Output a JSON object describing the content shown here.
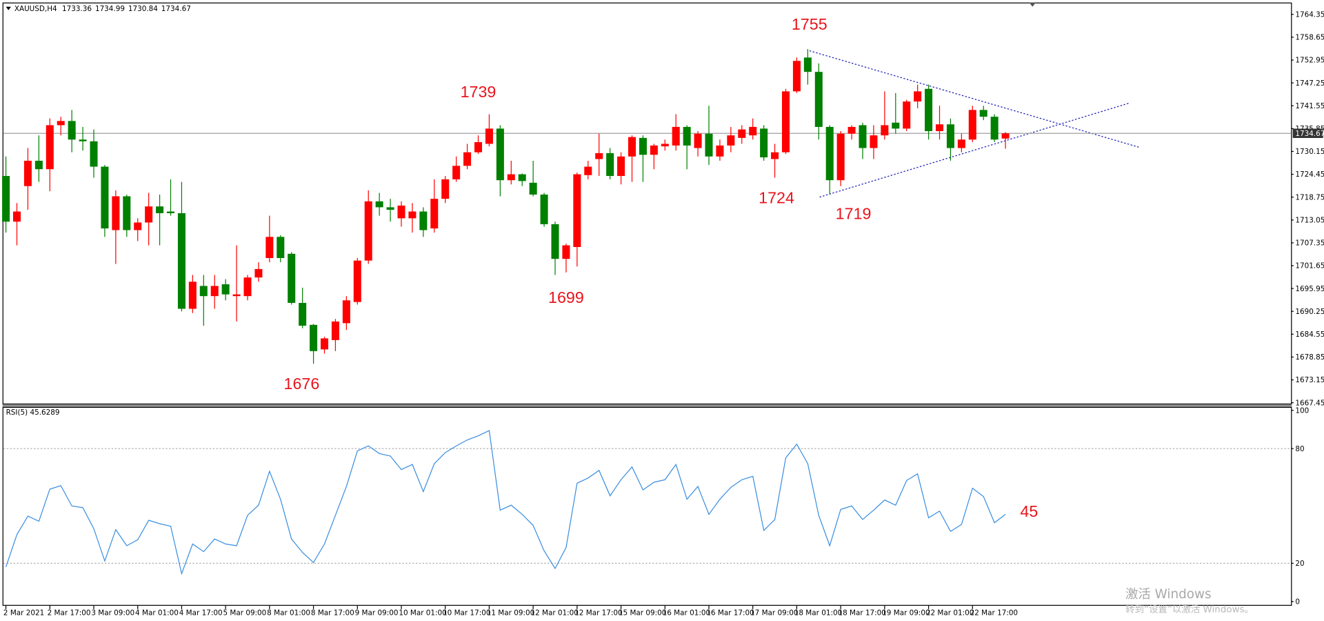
{
  "chart_data": {
    "type": "candlestick",
    "symbol": "XAUUSD,H4",
    "categories": [
      "2 Mar 2021",
      null,
      null,
      null,
      "2 Mar 17:00",
      null,
      null,
      null,
      "3 Mar 09:00",
      null,
      null,
      null,
      "4 Mar 01:00",
      null,
      null,
      null,
      "4 Mar 17:00",
      null,
      null,
      null,
      "5 Mar 09:00",
      null,
      null,
      null,
      "8 Mar 01:00",
      null,
      null,
      null,
      "8 Mar 17:00",
      null,
      null,
      null,
      "9 Mar 09:00",
      null,
      null,
      null,
      "10 Mar 01:00",
      null,
      null,
      null,
      "10 Mar 17:00",
      null,
      null,
      null,
      "11 Mar 09:00",
      null,
      null,
      null,
      "12 Mar 01:00",
      null,
      null,
      null,
      "12 Mar 17:00",
      null,
      null,
      null,
      "15 Mar 09:00",
      null,
      null,
      null,
      "16 Mar 01:00",
      null,
      null,
      null,
      "16 Mar 17:00",
      null,
      null,
      null,
      "17 Mar 09:00",
      null,
      null,
      null,
      "18 Mar 01:00",
      null,
      null,
      null,
      "18 Mar 17:00",
      null,
      null,
      null,
      "19 Mar 09:00",
      null,
      null,
      null,
      "22 Mar 01:00",
      null,
      null,
      null,
      "22 Mar 17:00",
      null,
      null,
      null
    ],
    "open": [
      1724.03,
      1712.63,
      1721.5,
      1727.83,
      1725.72,
      1736.7,
      1737.75,
      1733.11,
      1732.68,
      1726.35,
      1710.52,
      1718.96,
      1710.52,
      1712.42,
      1716.43,
      1715.16,
      1714.74,
      1690.89,
      1696.59,
      1694.05,
      1697.01,
      1694.05,
      1694.05,
      1698.7,
      1703.55,
      1708.83,
      1704.61,
      1692.36,
      1686.88,
      1680.75,
      1683.08,
      1687.3,
      1692.58,
      1702.92,
      1717.7,
      1716.22,
      1713.47,
      1713.47,
      1715.16,
      1710.94,
      1718.33,
      1723.19,
      1726.56,
      1729.94,
      1732.05,
      1735.85,
      1722.97,
      1724.45,
      1722.34,
      1719.39,
      1712.0,
      1703.34,
      1706.3,
      1724.24,
      1728.25,
      1729.73,
      1724.03,
      1728.89,
      1733.53,
      1729.31,
      1731.42,
      1731.63,
      1736.27,
      1731.0,
      1734.58,
      1728.89,
      1731.63,
      1733.53,
      1734.16,
      1735.85,
      1728.25,
      1729.94,
      1745.14,
      1753.58,
      1750.0,
      1736.27,
      1722.97,
      1734.58,
      1736.7,
      1731.0,
      1734.16,
      1737.33,
      1735.85,
      1742.61,
      1745.77,
      1735.22,
      1736.91,
      1731.0,
      1733.11,
      1740.5,
      1738.81,
      1733.36
    ],
    "high": [
      1728.89,
      1717.27,
      1731.0,
      1734.16,
      1738.38,
      1738.81,
      1740.5,
      1736.27,
      1735.64,
      1726.77,
      1720.44,
      1719.39,
      1713.47,
      1719.81,
      1719.39,
      1723.19,
      1722.55,
      1699.33,
      1699.33,
      1699.33,
      1698.28,
      1706.72,
      1699.33,
      1702.5,
      1714.11,
      1709.25,
      1705.03,
      1696.16,
      1687.09,
      1683.92,
      1688.35,
      1694.05,
      1703.55,
      1720.44,
      1719.81,
      1718.33,
      1717.7,
      1717.27,
      1716.22,
      1723.19,
      1724.03,
      1728.89,
      1732.05,
      1734.16,
      1739.44,
      1736.7,
      1727.83,
      1724.66,
      1727.83,
      1719.81,
      1712.63,
      1707.14,
      1724.87,
      1727.83,
      1734.58,
      1731.0,
      1729.94,
      1734.16,
      1734.16,
      1732.05,
      1733.11,
      1739.44,
      1736.7,
      1735.22,
      1741.55,
      1733.11,
      1736.27,
      1736.7,
      1738.38,
      1736.7,
      1732.05,
      1745.77,
      1753.58,
      1755.69,
      1752.11,
      1736.7,
      1735.22,
      1736.7,
      1737.33,
      1736.7,
      1745.14,
      1744.72,
      1743.03,
      1746.83,
      1746.83,
      1741.55,
      1738.38,
      1734.58,
      1741.55,
      1741.55,
      1739.44,
      1734.99
    ],
    "low": [
      1709.89,
      1706.72,
      1715.59,
      1722.55,
      1720.23,
      1734.16,
      1729.94,
      1730.36,
      1723.61,
      1708.83,
      1702.08,
      1708.83,
      1707.78,
      1706.72,
      1706.72,
      1714.11,
      1690.25,
      1689.83,
      1686.67,
      1690.89,
      1693.0,
      1687.72,
      1693.0,
      1697.64,
      1702.5,
      1702.5,
      1691.94,
      1686.03,
      1677.17,
      1679.7,
      1680.33,
      1685.61,
      1691.94,
      1702.08,
      1714.11,
      1712.63,
      1711.36,
      1709.89,
      1708.83,
      1709.89,
      1717.27,
      1722.55,
      1725.72,
      1729.52,
      1731.42,
      1718.96,
      1721.92,
      1721.5,
      1718.96,
      1711.36,
      1699.33,
      1699.96,
      1701.44,
      1723.19,
      1724.03,
      1723.19,
      1721.92,
      1722.55,
      1722.55,
      1725.72,
      1730.36,
      1730.36,
      1725.72,
      1728.89,
      1726.77,
      1727.83,
      1729.94,
      1732.05,
      1733.11,
      1727.83,
      1723.61,
      1729.52,
      1744.72,
      1746.83,
      1733.11,
      1719.39,
      1721.5,
      1733.11,
      1728.25,
      1728.25,
      1733.11,
      1734.58,
      1735.22,
      1740.92,
      1733.11,
      1733.11,
      1727.83,
      1729.94,
      1732.47,
      1737.96,
      1732.47,
      1730.84
    ],
    "close": [
      1712.63,
      1715.16,
      1727.83,
      1725.72,
      1736.7,
      1737.75,
      1733.11,
      1732.68,
      1726.35,
      1710.94,
      1718.96,
      1710.52,
      1712.42,
      1716.43,
      1714.74,
      1714.74,
      1690.89,
      1697.64,
      1694.05,
      1696.59,
      1694.48,
      1694.48,
      1698.7,
      1700.81,
      1708.83,
      1703.55,
      1692.36,
      1686.67,
      1680.33,
      1683.5,
      1687.72,
      1693.0,
      1702.92,
      1717.7,
      1716.22,
      1715.59,
      1716.64,
      1715.16,
      1710.52,
      1718.33,
      1723.19,
      1726.56,
      1729.94,
      1732.47,
      1735.85,
      1722.97,
      1724.45,
      1722.76,
      1719.39,
      1712.0,
      1703.34,
      1706.72,
      1724.45,
      1726.35,
      1729.73,
      1724.03,
      1728.89,
      1733.74,
      1729.31,
      1731.63,
      1732.05,
      1736.27,
      1731.63,
      1734.58,
      1728.89,
      1731.63,
      1734.16,
      1735.64,
      1736.27,
      1728.67,
      1729.94,
      1745.14,
      1752.74,
      1750.0,
      1736.27,
      1722.97,
      1734.58,
      1736.27,
      1731.0,
      1734.16,
      1736.7,
      1735.85,
      1742.61,
      1745.14,
      1735.22,
      1736.91,
      1731.0,
      1733.11,
      1740.5,
      1738.81,
      1733.11,
      1734.67
    ],
    "up_color": "#ff0000",
    "down_color": "#008000",
    "ylim": [
      1667.03,
      1766.88
    ],
    "yticks": [
      1764.35,
      1758.65,
      1752.95,
      1747.25,
      1741.55,
      1735.85,
      1730.15,
      1724.45,
      1718.75,
      1713.05,
      1707.35,
      1701.65,
      1695.95,
      1690.25,
      1684.55,
      1678.85,
      1673.15,
      1667.45
    ],
    "current_price": 1734.67,
    "annotations": [
      "1755",
      "1739",
      "1676",
      "1699",
      "1724",
      "1719",
      "45"
    ],
    "annotation_color": "#e8141c",
    "rsi": {
      "title": "RSI(5) 45.6289",
      "color": "#3a8ee0",
      "ylim": [
        0,
        100
      ],
      "yticks": [
        0,
        20,
        80,
        100
      ],
      "levels": [
        20,
        80
      ],
      "values": [
        18.1,
        35.0,
        44.7,
        42.0,
        58.8,
        60.6,
        50.0,
        49.1,
        38.1,
        21.2,
        37.6,
        29.2,
        32.3,
        42.5,
        40.7,
        39.4,
        14.6,
        30.1,
        26.1,
        32.7,
        30.1,
        29.2,
        45.1,
        50.4,
        68.1,
        53.5,
        32.7,
        25.7,
        20.4,
        30.1,
        45.1,
        60.2,
        78.8,
        81.4,
        77.4,
        76.1,
        69.0,
        71.7,
        57.5,
        72.1,
        77.9,
        81.4,
        84.5,
        86.7,
        89.4,
        47.8,
        50.4,
        45.6,
        39.8,
        26.5,
        17.3,
        28.3,
        61.9,
        64.6,
        68.6,
        55.3,
        63.7,
        70.4,
        58.4,
        62.4,
        63.7,
        71.7,
        53.5,
        60.2,
        45.6,
        53.5,
        59.7,
        63.7,
        65.5,
        37.2,
        42.9,
        75.2,
        82.3,
        72.1,
        45.1,
        29.2,
        48.2,
        50.0,
        42.9,
        47.8,
        53.1,
        50.4,
        63.3,
        66.8,
        43.8,
        47.3,
        36.7,
        40.3,
        59.3,
        54.9,
        41.2,
        45.63
      ]
    },
    "watermark": [
      "激活 Windows",
      "转到“设置”以激活 Windows。"
    ]
  }
}
